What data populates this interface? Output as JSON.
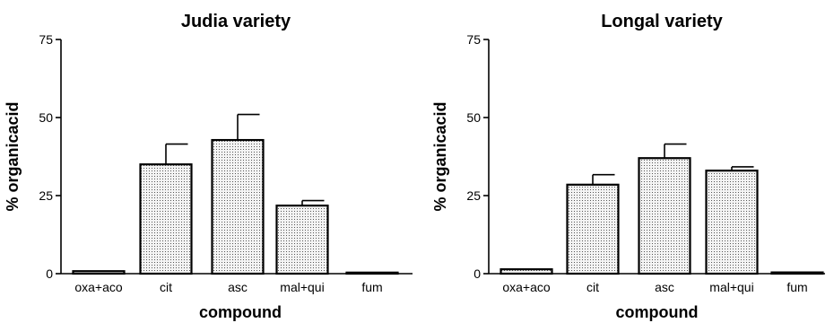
{
  "chart_data": [
    {
      "type": "bar",
      "title": "Judia variety",
      "xlabel": "compound",
      "ylabel": "% organicacid",
      "ylim": [
        0,
        75
      ],
      "yticks": [
        0,
        25,
        50,
        75
      ],
      "grid": false,
      "categories": [
        "oxa+aco",
        "cit",
        "asc",
        "mal+qui",
        "fum"
      ],
      "values": [
        0.8,
        35,
        42.8,
        21.8,
        0.3
      ],
      "errors": [
        0,
        6.5,
        8.2,
        1.6,
        0
      ],
      "fill_pattern": "dotted-gray"
    },
    {
      "type": "bar",
      "title": "Longal variety",
      "xlabel": "compound",
      "ylabel": "% organicacid",
      "ylim": [
        0,
        75
      ],
      "yticks": [
        0,
        25,
        50,
        75
      ],
      "grid": false,
      "categories": [
        "oxa+aco",
        "cit",
        "asc",
        "mal+qui",
        "fum"
      ],
      "values": [
        1.4,
        28.5,
        37,
        33,
        0.4
      ],
      "errors": [
        0,
        3.2,
        4.5,
        1.2,
        0
      ],
      "fill_pattern": "dotted-gray"
    }
  ]
}
